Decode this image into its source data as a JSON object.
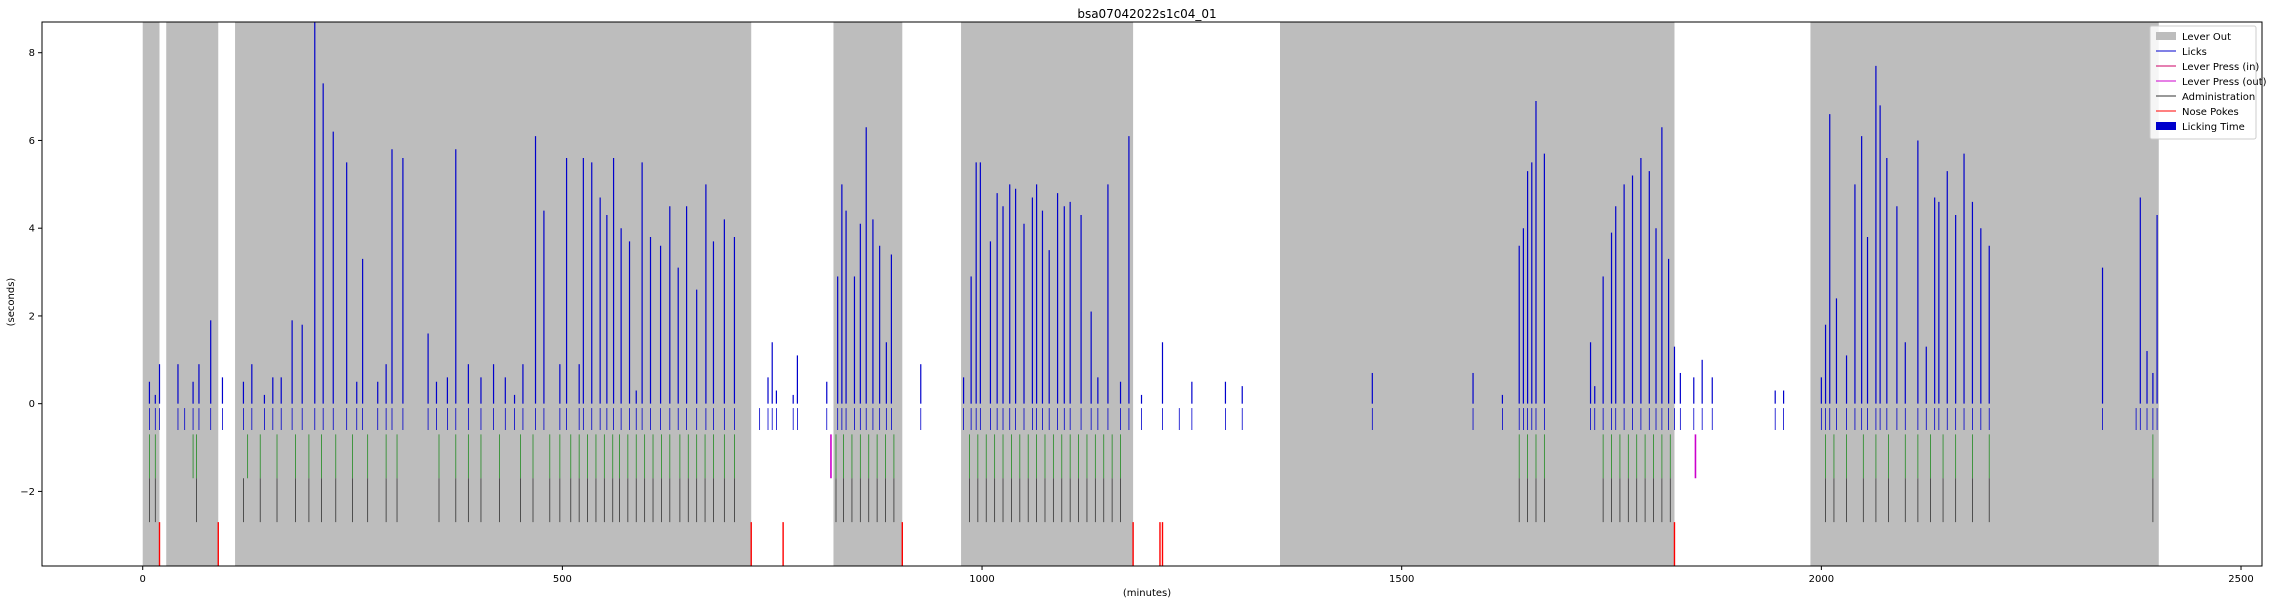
{
  "chart_data": {
    "type": "event_raster",
    "title": "bsa07042022s1c04_01",
    "xlabel": "(minutes)",
    "ylabel": "(seconds)",
    "xlim": [
      -120,
      2525
    ],
    "ylim": [
      -3.7,
      8.7
    ],
    "xticks": [
      0,
      500,
      1000,
      1500,
      2000,
      2500
    ],
    "yticks": [
      -2,
      0,
      2,
      4,
      6,
      8
    ],
    "legend_position": "top-right",
    "legend": [
      {
        "label": "Lever Out",
        "kind": "patch",
        "color": "#bdbdbd"
      },
      {
        "label": "Licks",
        "kind": "line",
        "color": "#0000cc"
      },
      {
        "label": "Lever Press (in)",
        "kind": "line",
        "color": "#cc0066"
      },
      {
        "label": "Lever Press (out)",
        "kind": "line",
        "color": "#cc00cc"
      },
      {
        "label": "Administration",
        "kind": "line",
        "color": "#333333"
      },
      {
        "label": "Nose Pokes",
        "kind": "line",
        "color": "#ff0000"
      },
      {
        "label": "Licking Time",
        "kind": "patch",
        "color": "#0000cc"
      }
    ],
    "lever_out": [
      [
        0,
        20
      ],
      [
        28,
        90
      ],
      [
        110,
        725
      ],
      [
        823,
        905
      ],
      [
        975,
        1180
      ],
      [
        1355,
        1825
      ],
      [
        1987,
        2402
      ]
    ],
    "lick_bouts": [
      {
        "x": 8,
        "y": 0.5
      },
      {
        "x": 15,
        "y": 0.2
      },
      {
        "x": 20,
        "y": 0.9
      },
      {
        "x": 42,
        "y": 0.9
      },
      {
        "x": 60,
        "y": 0.5
      },
      {
        "x": 67,
        "y": 0.9
      },
      {
        "x": 81,
        "y": 1.9
      },
      {
        "x": 95,
        "y": 0.6
      },
      {
        "x": 120,
        "y": 0.5
      },
      {
        "x": 130,
        "y": 0.9
      },
      {
        "x": 145,
        "y": 0.2
      },
      {
        "x": 155,
        "y": 0.6
      },
      {
        "x": 165,
        "y": 0.6
      },
      {
        "x": 178,
        "y": 1.9
      },
      {
        "x": 190,
        "y": 1.8
      },
      {
        "x": 205,
        "y": 8.7
      },
      {
        "x": 215,
        "y": 7.3
      },
      {
        "x": 227,
        "y": 6.2
      },
      {
        "x": 243,
        "y": 5.5
      },
      {
        "x": 255,
        "y": 0.5
      },
      {
        "x": 262,
        "y": 3.3
      },
      {
        "x": 280,
        "y": 0.5
      },
      {
        "x": 290,
        "y": 0.9
      },
      {
        "x": 297,
        "y": 5.8
      },
      {
        "x": 310,
        "y": 5.6
      },
      {
        "x": 340,
        "y": 1.6
      },
      {
        "x": 350,
        "y": 0.5
      },
      {
        "x": 363,
        "y": 0.6
      },
      {
        "x": 373,
        "y": 5.8
      },
      {
        "x": 388,
        "y": 0.9
      },
      {
        "x": 403,
        "y": 0.6
      },
      {
        "x": 418,
        "y": 0.9
      },
      {
        "x": 432,
        "y": 0.6
      },
      {
        "x": 443,
        "y": 0.2
      },
      {
        "x": 453,
        "y": 0.9
      },
      {
        "x": 468,
        "y": 6.1
      },
      {
        "x": 478,
        "y": 4.4
      },
      {
        "x": 497,
        "y": 0.9
      },
      {
        "x": 505,
        "y": 5.6
      },
      {
        "x": 520,
        "y": 0.9
      },
      {
        "x": 525,
        "y": 5.6
      },
      {
        "x": 535,
        "y": 5.5
      },
      {
        "x": 545,
        "y": 4.7
      },
      {
        "x": 553,
        "y": 4.3
      },
      {
        "x": 561,
        "y": 5.6
      },
      {
        "x": 570,
        "y": 4.0
      },
      {
        "x": 580,
        "y": 3.7
      },
      {
        "x": 588,
        "y": 0.3
      },
      {
        "x": 595,
        "y": 5.5
      },
      {
        "x": 605,
        "y": 3.8
      },
      {
        "x": 617,
        "y": 3.6
      },
      {
        "x": 628,
        "y": 4.5
      },
      {
        "x": 638,
        "y": 3.1
      },
      {
        "x": 648,
        "y": 4.5
      },
      {
        "x": 660,
        "y": 2.6
      },
      {
        "x": 671,
        "y": 5.0
      },
      {
        "x": 680,
        "y": 3.7
      },
      {
        "x": 693,
        "y": 4.2
      },
      {
        "x": 705,
        "y": 3.8
      },
      {
        "x": 745,
        "y": 0.6
      },
      {
        "x": 750,
        "y": 1.4
      },
      {
        "x": 755,
        "y": 0.3
      },
      {
        "x": 775,
        "y": 0.2
      },
      {
        "x": 780,
        "y": 1.1
      },
      {
        "x": 815,
        "y": 0.5
      },
      {
        "x": 828,
        "y": 2.9
      },
      {
        "x": 833,
        "y": 5.0
      },
      {
        "x": 838,
        "y": 4.4
      },
      {
        "x": 848,
        "y": 2.9
      },
      {
        "x": 855,
        "y": 4.1
      },
      {
        "x": 862,
        "y": 6.3
      },
      {
        "x": 870,
        "y": 4.2
      },
      {
        "x": 878,
        "y": 3.6
      },
      {
        "x": 886,
        "y": 1.4
      },
      {
        "x": 892,
        "y": 3.4
      },
      {
        "x": 927,
        "y": 0.9
      },
      {
        "x": 978,
        "y": 0.6
      },
      {
        "x": 987,
        "y": 2.9
      },
      {
        "x": 993,
        "y": 5.5
      },
      {
        "x": 998,
        "y": 5.5
      },
      {
        "x": 1010,
        "y": 3.7
      },
      {
        "x": 1018,
        "y": 4.8
      },
      {
        "x": 1025,
        "y": 4.5
      },
      {
        "x": 1033,
        "y": 5.0
      },
      {
        "x": 1040,
        "y": 4.9
      },
      {
        "x": 1050,
        "y": 4.1
      },
      {
        "x": 1060,
        "y": 4.7
      },
      {
        "x": 1065,
        "y": 5.0
      },
      {
        "x": 1072,
        "y": 4.4
      },
      {
        "x": 1080,
        "y": 3.5
      },
      {
        "x": 1090,
        "y": 4.8
      },
      {
        "x": 1098,
        "y": 4.5
      },
      {
        "x": 1105,
        "y": 4.6
      },
      {
        "x": 1118,
        "y": 4.3
      },
      {
        "x": 1130,
        "y": 2.1
      },
      {
        "x": 1138,
        "y": 0.6
      },
      {
        "x": 1150,
        "y": 5.0
      },
      {
        "x": 1165,
        "y": 0.5
      },
      {
        "x": 1175,
        "y": 6.1
      },
      {
        "x": 1190,
        "y": 0.2
      },
      {
        "x": 1215,
        "y": 1.4
      },
      {
        "x": 1250,
        "y": 0.5
      },
      {
        "x": 1290,
        "y": 0.5
      },
      {
        "x": 1310,
        "y": 0.4
      },
      {
        "x": 1465,
        "y": 0.7
      },
      {
        "x": 1585,
        "y": 0.7
      },
      {
        "x": 1620,
        "y": 0.2
      },
      {
        "x": 1640,
        "y": 3.6
      },
      {
        "x": 1645,
        "y": 4.0
      },
      {
        "x": 1650,
        "y": 5.3
      },
      {
        "x": 1655,
        "y": 5.5
      },
      {
        "x": 1660,
        "y": 6.9
      },
      {
        "x": 1670,
        "y": 5.7
      },
      {
        "x": 1725,
        "y": 1.4
      },
      {
        "x": 1730,
        "y": 0.4
      },
      {
        "x": 1740,
        "y": 2.9
      },
      {
        "x": 1750,
        "y": 3.9
      },
      {
        "x": 1755,
        "y": 4.5
      },
      {
        "x": 1765,
        "y": 5.0
      },
      {
        "x": 1775,
        "y": 5.2
      },
      {
        "x": 1785,
        "y": 5.6
      },
      {
        "x": 1795,
        "y": 5.3
      },
      {
        "x": 1803,
        "y": 4.0
      },
      {
        "x": 1810,
        "y": 6.3
      },
      {
        "x": 1818,
        "y": 3.3
      },
      {
        "x": 1825,
        "y": 1.3
      },
      {
        "x": 1832,
        "y": 0.7
      },
      {
        "x": 1848,
        "y": 0.6
      },
      {
        "x": 1858,
        "y": 1.0
      },
      {
        "x": 1870,
        "y": 0.6
      },
      {
        "x": 1945,
        "y": 0.3
      },
      {
        "x": 1955,
        "y": 0.3
      },
      {
        "x": 2000,
        "y": 0.6
      },
      {
        "x": 2005,
        "y": 1.8
      },
      {
        "x": 2010,
        "y": 6.6
      },
      {
        "x": 2018,
        "y": 2.4
      },
      {
        "x": 2030,
        "y": 1.1
      },
      {
        "x": 2040,
        "y": 5.0
      },
      {
        "x": 2048,
        "y": 6.1
      },
      {
        "x": 2055,
        "y": 3.8
      },
      {
        "x": 2065,
        "y": 7.7
      },
      {
        "x": 2070,
        "y": 6.8
      },
      {
        "x": 2078,
        "y": 5.6
      },
      {
        "x": 2090,
        "y": 4.5
      },
      {
        "x": 2100,
        "y": 1.4
      },
      {
        "x": 2115,
        "y": 6.0
      },
      {
        "x": 2125,
        "y": 1.3
      },
      {
        "x": 2135,
        "y": 4.7
      },
      {
        "x": 2140,
        "y": 4.6
      },
      {
        "x": 2150,
        "y": 5.3
      },
      {
        "x": 2160,
        "y": 4.3
      },
      {
        "x": 2170,
        "y": 5.7
      },
      {
        "x": 2180,
        "y": 4.6
      },
      {
        "x": 2190,
        "y": 4.0
      },
      {
        "x": 2200,
        "y": 3.6
      },
      {
        "x": 2335,
        "y": 3.1
      },
      {
        "x": 2380,
        "y": 4.7
      },
      {
        "x": 2388,
        "y": 1.2
      },
      {
        "x": 2395,
        "y": 0.7
      },
      {
        "x": 2400,
        "y": 4.3
      }
    ],
    "lick_ticks": [
      8,
      15,
      20,
      42,
      50,
      60,
      67,
      81,
      95,
      120,
      130,
      145,
      155,
      165,
      178,
      190,
      205,
      215,
      227,
      243,
      255,
      262,
      280,
      290,
      297,
      310,
      340,
      350,
      363,
      373,
      388,
      403,
      418,
      432,
      443,
      453,
      468,
      478,
      497,
      505,
      520,
      525,
      535,
      545,
      553,
      561,
      570,
      580,
      588,
      595,
      605,
      617,
      628,
      638,
      648,
      660,
      671,
      680,
      693,
      705,
      735,
      745,
      750,
      755,
      775,
      780,
      815,
      828,
      833,
      838,
      848,
      855,
      862,
      870,
      878,
      886,
      892,
      927,
      978,
      987,
      993,
      998,
      1010,
      1018,
      1025,
      1033,
      1040,
      1050,
      1060,
      1065,
      1072,
      1080,
      1090,
      1098,
      1105,
      1118,
      1130,
      1138,
      1150,
      1165,
      1175,
      1190,
      1215,
      1235,
      1250,
      1290,
      1310,
      1465,
      1585,
      1620,
      1640,
      1645,
      1650,
      1655,
      1660,
      1670,
      1725,
      1730,
      1740,
      1750,
      1755,
      1765,
      1775,
      1785,
      1795,
      1803,
      1810,
      1818,
      1825,
      1832,
      1848,
      1858,
      1870,
      1945,
      1955,
      2000,
      2005,
      2010,
      2018,
      2030,
      2040,
      2048,
      2055,
      2065,
      2070,
      2078,
      2090,
      2100,
      2115,
      2125,
      2135,
      2140,
      2150,
      2160,
      2170,
      2180,
      2190,
      2200,
      2335,
      2375,
      2380,
      2388,
      2395,
      2400
    ],
    "lever_press_in": [
      8,
      15,
      60,
      64,
      125,
      140,
      160,
      182,
      198,
      213,
      230,
      250,
      268,
      290,
      303,
      353,
      373,
      388,
      403,
      425,
      450,
      465,
      485,
      497,
      510,
      520,
      530,
      540,
      550,
      560,
      568,
      578,
      588,
      598,
      608,
      618,
      628,
      640,
      650,
      660,
      670,
      680,
      693,
      705,
      826,
      835,
      845,
      855,
      865,
      875,
      885,
      895,
      985,
      995,
      1005,
      1015,
      1025,
      1035,
      1045,
      1055,
      1065,
      1075,
      1085,
      1095,
      1105,
      1115,
      1125,
      1135,
      1145,
      1155,
      1165,
      1640,
      1650,
      1660,
      1670,
      1740,
      1750,
      1760,
      1770,
      1780,
      1790,
      1800,
      1810,
      1820,
      2005,
      2015,
      2030,
      2050,
      2065,
      2080,
      2100,
      2115,
      2130,
      2145,
      2160,
      2180,
      2200,
      2395
    ],
    "lever_press_out": [
      820,
      1850
    ],
    "administrations": [
      8,
      15,
      64,
      120,
      140,
      160,
      182,
      198,
      213,
      230,
      250,
      268,
      290,
      303,
      353,
      373,
      388,
      403,
      425,
      450,
      465,
      485,
      497,
      510,
      520,
      530,
      540,
      550,
      560,
      568,
      578,
      588,
      598,
      608,
      618,
      628,
      640,
      650,
      660,
      670,
      680,
      693,
      705,
      826,
      835,
      845,
      855,
      865,
      875,
      885,
      895,
      985,
      995,
      1005,
      1015,
      1025,
      1035,
      1045,
      1055,
      1065,
      1075,
      1085,
      1095,
      1105,
      1115,
      1125,
      1135,
      1145,
      1155,
      1165,
      1640,
      1650,
      1660,
      1670,
      1740,
      1750,
      1760,
      1770,
      1780,
      1790,
      1800,
      1810,
      1820,
      2005,
      2015,
      2030,
      2050,
      2065,
      2080,
      2100,
      2115,
      2130,
      2145,
      2160,
      2180,
      2200,
      2395
    ],
    "nose_pokes": [
      20,
      90,
      725,
      763,
      905,
      1180,
      1212,
      1215,
      1825
    ]
  }
}
